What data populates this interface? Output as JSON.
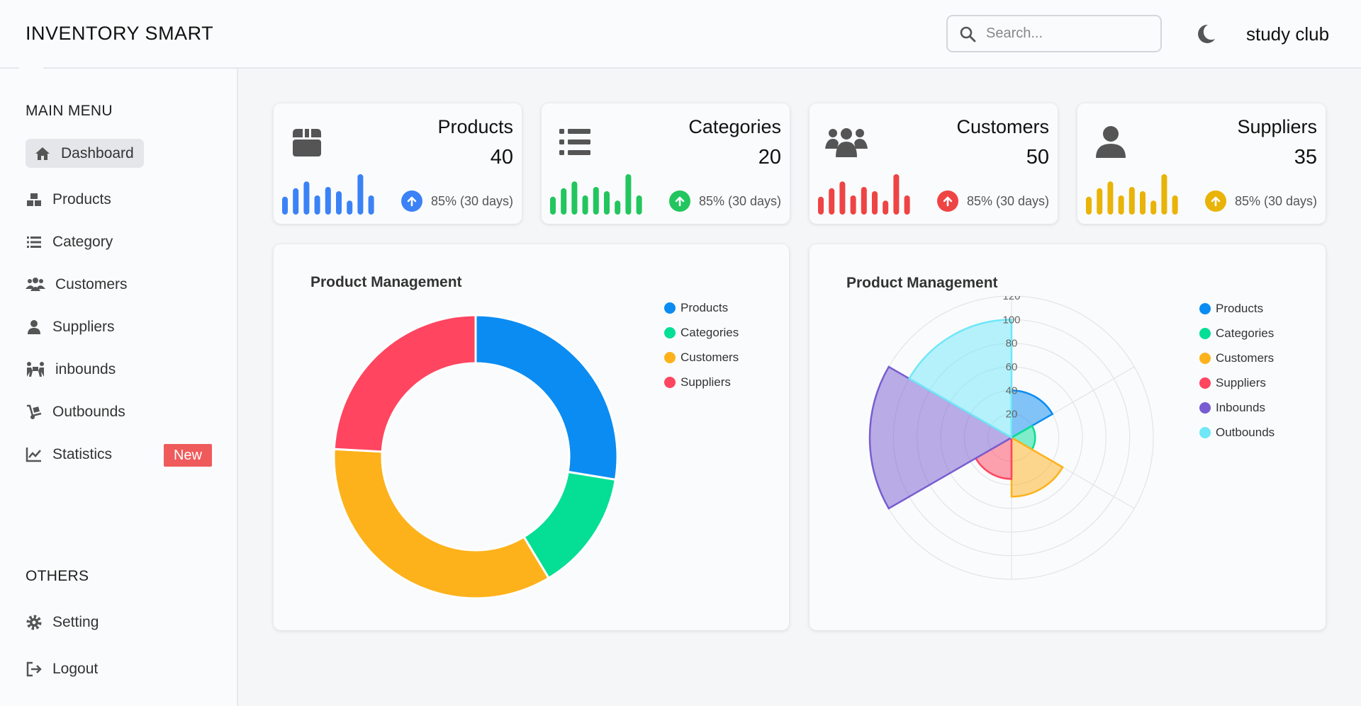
{
  "header": {
    "brand": "INVENTORY SMART",
    "search_placeholder": "Search...",
    "user_name": "study club"
  },
  "sidebar": {
    "main_menu_title": "MAIN MENU",
    "others_title": "OTHERS",
    "items": [
      {
        "label": "Dashboard",
        "icon": "home-icon"
      },
      {
        "label": "Products",
        "icon": "boxes-icon"
      },
      {
        "label": "Category",
        "icon": "list-icon"
      },
      {
        "label": "Customers",
        "icon": "users-icon"
      },
      {
        "label": "Suppliers",
        "icon": "user-icon"
      },
      {
        "label": "inbounds",
        "icon": "people-carry-icon"
      },
      {
        "label": "Outbounds",
        "icon": "dolly-icon"
      },
      {
        "label": "Statistics",
        "icon": "chart-line-icon"
      }
    ],
    "statistics_badge": "New",
    "others": [
      {
        "label": "Setting",
        "icon": "gear-icon"
      },
      {
        "label": "Logout",
        "icon": "logout-icon"
      }
    ]
  },
  "stats": [
    {
      "title": "Products",
      "value": "40",
      "trend": "85% (30 days)",
      "color": "#3b82f6",
      "icon": "box-icon"
    },
    {
      "title": "Categories",
      "value": "20",
      "trend": "85% (30 days)",
      "color": "#22c55e",
      "icon": "list-icon"
    },
    {
      "title": "Customers",
      "value": "50",
      "trend": "85% (30 days)",
      "color": "#ef4444",
      "icon": "users-icon"
    },
    {
      "title": "Suppliers",
      "value": "35",
      "trend": "85% (30 days)",
      "color": "#eab308",
      "icon": "user-icon"
    }
  ],
  "chart_data": [
    {
      "type": "pie",
      "title": "Product Management",
      "categories": [
        "Products",
        "Categories",
        "Customers",
        "Suppliers"
      ],
      "values": [
        40,
        20,
        50,
        35
      ],
      "colors": [
        "#0a8cf2",
        "#05de95",
        "#fdb11b",
        "#ff4560"
      ],
      "legend": "top-right"
    },
    {
      "type": "polarArea",
      "title": "Product Management",
      "categories": [
        "Products",
        "Categories",
        "Customers",
        "Suppliers",
        "Inbounds",
        "Outbounds"
      ],
      "values": [
        40,
        20,
        50,
        35,
        120,
        100
      ],
      "colors": [
        "#0a8cf2",
        "#05de95",
        "#fdb11b",
        "#ff4560",
        "#775dd0",
        "#6fe7f7"
      ],
      "rlim": [
        0,
        120
      ],
      "ticks": [
        "20",
        "40",
        "60",
        "80",
        "100",
        "120"
      ],
      "legend": "top-right"
    }
  ]
}
